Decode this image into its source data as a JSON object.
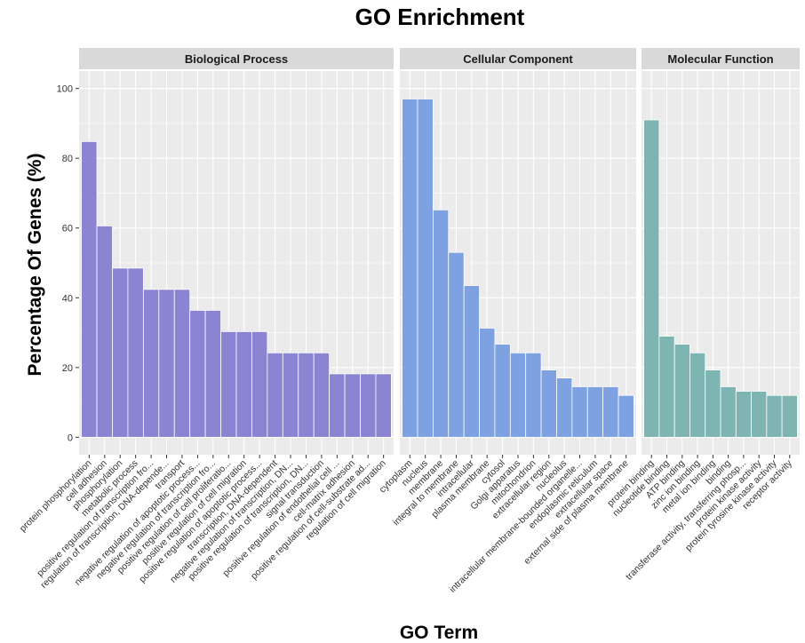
{
  "chart_data": {
    "type": "bar",
    "title": "GO Enrichment",
    "xlabel": "GO Term",
    "ylabel": "Percentage Of Genes (%)",
    "ylim": [
      0,
      100
    ],
    "yticks": [
      0,
      20,
      40,
      60,
      80,
      100
    ],
    "grid": true,
    "legend": "none",
    "facets": [
      {
        "name": "Biological Process",
        "color": "#8B84D3",
        "categories": [
          "protein phosphorylation",
          "cell adhesion",
          "phosphorylation",
          "metabolic process",
          "positive regulation of transcription fro...",
          "regulation of transcription, DNA-depende...",
          "transport",
          "negative regulation of apoptotic process...",
          "negative regulation of transcription fro...",
          "positive regulation of cell proliferatio...",
          "positive regulation of cell migration",
          "positive regulation of apoptotic process...",
          "transcription, DNA-dependent",
          "negative regulation of transcription, DN...",
          "positive regulation of transcription, DN...",
          "signal transduction",
          "positive regulation of endothelial cell ...",
          "cell-matrix adhesion",
          "positive regulation of cell-substrate ad...",
          "regulation of cell migration"
        ],
        "values": [
          84.8,
          60.6,
          48.5,
          48.5,
          42.4,
          42.4,
          42.4,
          36.4,
          36.4,
          30.3,
          30.3,
          30.3,
          24.2,
          24.2,
          24.2,
          24.2,
          18.2,
          18.2,
          18.2,
          18.2
        ]
      },
      {
        "name": "Cellular Component",
        "color": "#7EA1E2",
        "categories": [
          "cytoplasm",
          "nucleus",
          "membrane",
          "integral to membrane",
          "intracellular",
          "plasma membrane",
          "cytosol",
          "Golgi apparatus",
          "mitochondrion",
          "extracellular region",
          "nucleolus",
          "intracellular membrane-bounded organelle...",
          "endoplasmic reticulum",
          "extracellular space",
          "external side of plasma membrane"
        ],
        "values": [
          97.0,
          97.0,
          65.2,
          53.0,
          43.5,
          31.3,
          26.7,
          24.2,
          24.2,
          19.3,
          17.0,
          14.5,
          14.5,
          14.5,
          12.0
        ]
      },
      {
        "name": "Molecular Function",
        "color": "#7EB4B1",
        "categories": [
          "protein binding",
          "nucleotide binding",
          "ATP binding",
          "zinc ion binding",
          "metal ion binding",
          "binding",
          "transferase activity, transferring phosp...",
          "protein kinase activity",
          "protein tyrosine kinase activity",
          "receptor activity"
        ],
        "values": [
          91.0,
          29.0,
          26.7,
          24.2,
          19.3,
          14.5,
          13.2,
          13.2,
          12.0,
          12.0
        ]
      }
    ]
  }
}
